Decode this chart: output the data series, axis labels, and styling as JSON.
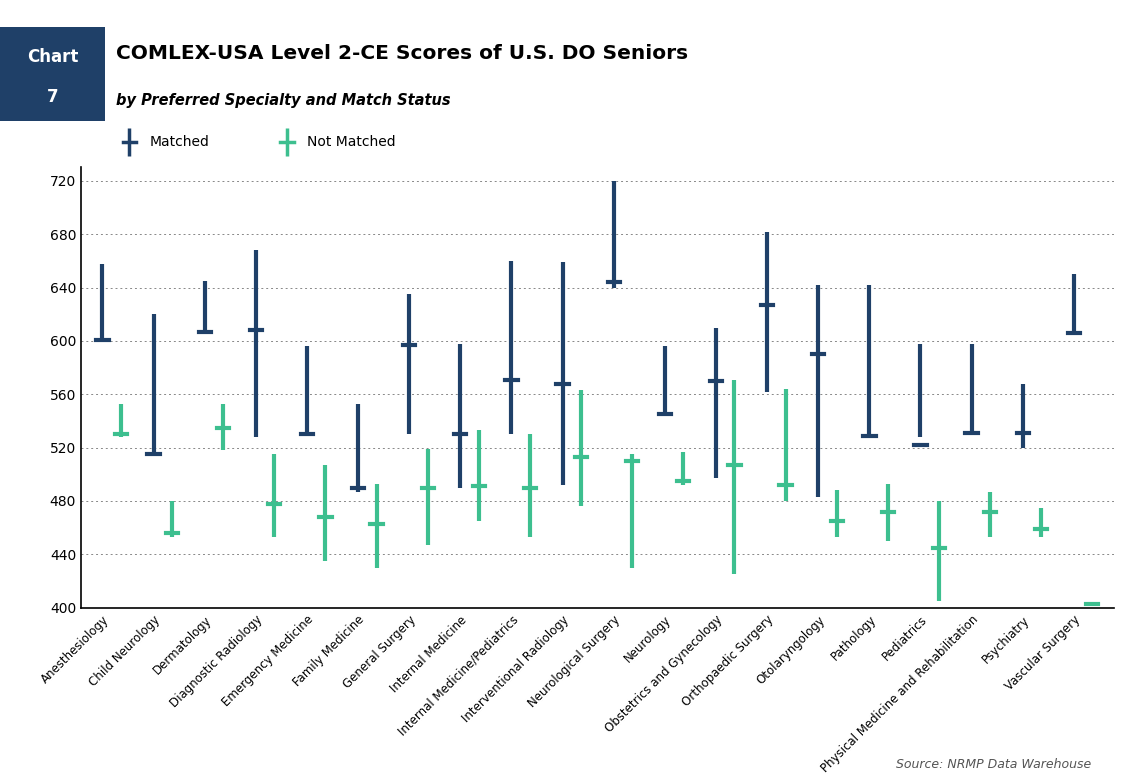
{
  "title": "COMLEX-USA Level 2-CE Scores of U.S. DO Seniors",
  "subtitle": "by Preferred Specialty and Match Status",
  "source": "Source: NRMP Data Warehouse",
  "matched_color": "#1f4068",
  "not_matched_color": "#3dbf8f",
  "header_bg": "#1f4068",
  "ylim": [
    400,
    730
  ],
  "yticks": [
    400,
    440,
    480,
    520,
    560,
    600,
    640,
    680,
    720
  ],
  "specialties": [
    "Anesthesiology",
    "Child Neurology",
    "Dermatology",
    "Diagnostic Radiology",
    "Emergency Medicine",
    "Family Medicine",
    "General Surgery",
    "Internal Medicine",
    "Internal Medicine/Pediatrics",
    "Interventional Radiology",
    "Neurological Surgery",
    "Neurology",
    "Obstetrics and Gynecology",
    "Orthopaedic Surgery",
    "Otolaryngology",
    "Pathology",
    "Pediatrics",
    "Physical Medicine and Rehabilitation",
    "Psychiatry",
    "Vascular Surgery"
  ],
  "matched_ranges": [
    [
      601,
      658
    ],
    [
      515,
      620
    ],
    [
      605,
      645
    ],
    [
      528,
      668
    ],
    [
      530,
      596
    ],
    [
      487,
      553
    ],
    [
      530,
      635
    ],
    [
      490,
      598
    ],
    [
      530,
      660
    ],
    [
      492,
      659
    ],
    [
      640,
      720
    ],
    [
      545,
      596
    ],
    [
      497,
      610
    ],
    [
      562,
      682
    ],
    [
      483,
      642
    ],
    [
      527,
      642
    ],
    [
      528,
      598
    ],
    [
      530,
      598
    ],
    [
      520,
      568
    ],
    [
      605,
      650
    ]
  ],
  "matched_medians": [
    601,
    515,
    607,
    608,
    530,
    490,
    597,
    530,
    571,
    568,
    644,
    545,
    570,
    627,
    590,
    529,
    522,
    531,
    531,
    606
  ],
  "not_matched_ranges": [
    [
      528,
      553
    ],
    [
      453,
      480
    ],
    [
      518,
      553
    ],
    [
      453,
      515
    ],
    [
      435,
      507
    ],
    [
      430,
      493
    ],
    [
      447,
      519
    ],
    [
      465,
      533
    ],
    [
      453,
      530
    ],
    [
      476,
      563
    ],
    [
      430,
      515
    ],
    [
      492,
      517
    ],
    [
      425,
      571
    ],
    [
      480,
      564
    ],
    [
      453,
      488
    ],
    [
      450,
      493
    ],
    [
      405,
      480
    ],
    [
      453,
      487
    ],
    [
      453,
      475
    ],
    [
      403,
      403
    ]
  ],
  "not_matched_medians": [
    530,
    456,
    535,
    478,
    468,
    463,
    490,
    491,
    490,
    513,
    510,
    495,
    507,
    492,
    465,
    472,
    445,
    472,
    459,
    403
  ]
}
